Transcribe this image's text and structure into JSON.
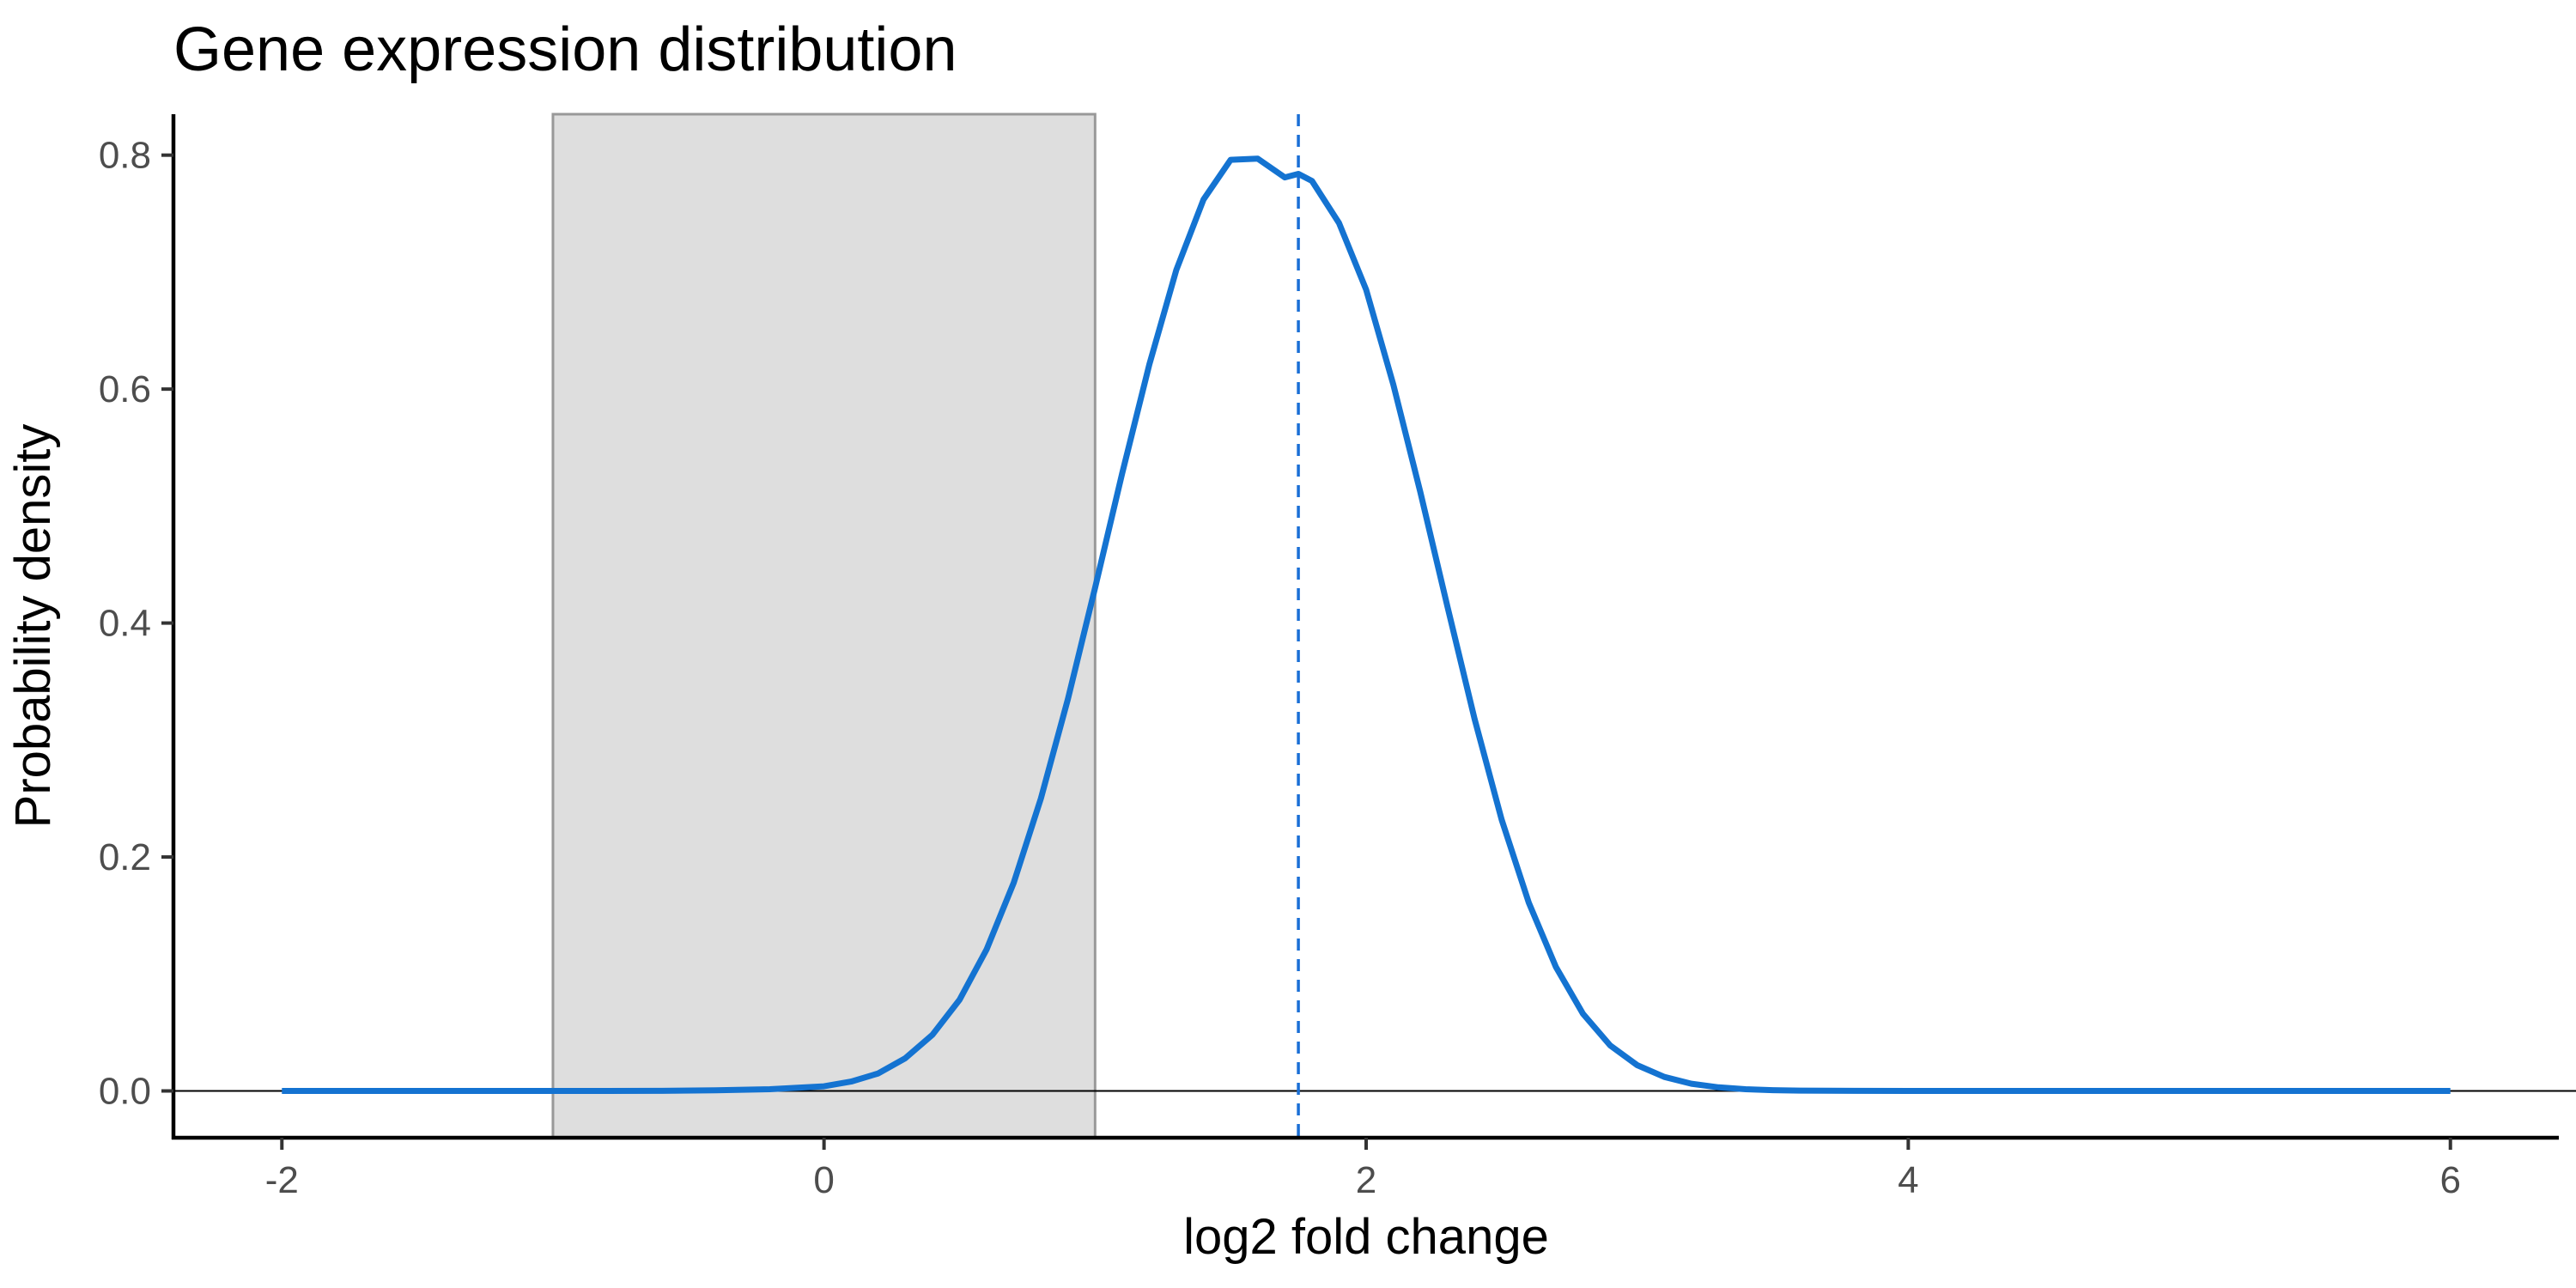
{
  "chart_data": {
    "type": "line",
    "title": "Gene expression distribution",
    "xlabel": "log2 fold change",
    "ylabel": "Probability density",
    "xlim": [
      -2.4,
      6.4
    ],
    "ylim": [
      -0.04,
      0.835
    ],
    "x_ticks": [
      -2,
      0,
      2,
      4,
      6
    ],
    "x_tick_labels": [
      "-2",
      "0",
      "2",
      "4",
      "6"
    ],
    "y_ticks": [
      0.0,
      0.2,
      0.4,
      0.6,
      0.8
    ],
    "y_tick_labels": [
      "0.0",
      "0.2",
      "0.4",
      "0.6",
      "0.8"
    ],
    "grid": false,
    "shaded_region": {
      "x_range": [
        -1,
        1
      ],
      "fill": "#dedede",
      "stroke": "#999999"
    },
    "reference_lines": [
      {
        "orientation": "vertical",
        "x": 1.75,
        "style": "dashed",
        "color": "#1a6fd6"
      },
      {
        "orientation": "horizontal",
        "y": 0,
        "style": "solid",
        "color": "#000000"
      }
    ],
    "series": [
      {
        "color": "#1473d1",
        "x": [
          -2.0,
          -1.8,
          -1.6,
          -1.4,
          -1.2,
          -1.0,
          -0.8,
          -0.6,
          -0.4,
          -0.2,
          0.0,
          0.1,
          0.2,
          0.3,
          0.4,
          0.5,
          0.6,
          0.7,
          0.8,
          0.9,
          1.0,
          1.1,
          1.2,
          1.3,
          1.4,
          1.5,
          1.6,
          1.7,
          1.75,
          1.8,
          1.9,
          2.0,
          2.1,
          2.2,
          2.3,
          2.4,
          2.5,
          2.6,
          2.7,
          2.8,
          2.9,
          3.0,
          3.1,
          3.2,
          3.3,
          3.4,
          3.5,
          3.6,
          3.8,
          4.0,
          4.5,
          5.0,
          5.5,
          6.0
        ],
        "y": [
          0.0,
          0.0,
          0.0,
          0.0,
          0.0,
          0.0,
          0.0,
          0.0001,
          0.0005,
          0.0015,
          0.004,
          0.008,
          0.015,
          0.028,
          0.048,
          0.078,
          0.121,
          0.178,
          0.25,
          0.335,
          0.43,
          0.528,
          0.621,
          0.702,
          0.762,
          0.796,
          0.797,
          0.781,
          0.784,
          0.778,
          0.742,
          0.685,
          0.604,
          0.512,
          0.414,
          0.318,
          0.232,
          0.161,
          0.106,
          0.066,
          0.039,
          0.022,
          0.012,
          0.0062,
          0.0031,
          0.0015,
          0.0007,
          0.0003,
          0.0001,
          0.0,
          0.0,
          0.0,
          0.0,
          0.0
        ]
      }
    ]
  }
}
